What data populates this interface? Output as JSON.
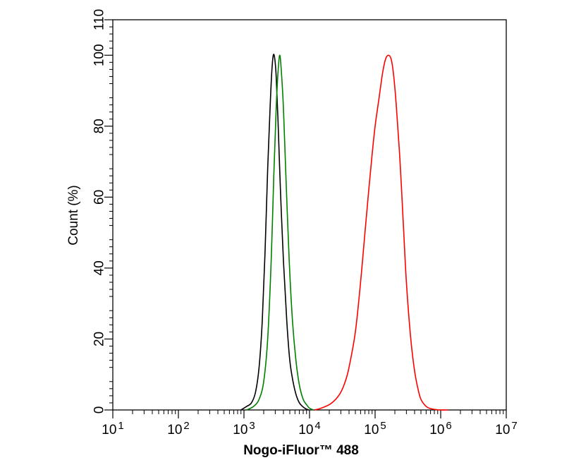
{
  "chart_data": {
    "type": "line",
    "title": "",
    "xlabel": "Nogo-iFluor™ 488",
    "ylabel": "Count  (%)",
    "x_scale": "log",
    "xlim": [
      10,
      10000000
    ],
    "ylim": [
      0,
      110
    ],
    "x_ticks": [
      {
        "base": "10",
        "exp": "1"
      },
      {
        "base": "10",
        "exp": "2"
      },
      {
        "base": "10",
        "exp": "3"
      },
      {
        "base": "10",
        "exp": "4"
      },
      {
        "base": "10",
        "exp": "5"
      },
      {
        "base": "10",
        "exp": "6"
      },
      {
        "base": "10",
        "exp": "7"
      }
    ],
    "y_ticks": [
      "0",
      "20",
      "40",
      "60",
      "80",
      "100",
      "110"
    ],
    "y_tick_values": [
      0,
      20,
      40,
      60,
      80,
      100,
      110
    ],
    "legend": "none",
    "grid": false,
    "series": [
      {
        "color": "#000000",
        "x": [
          900,
          1100,
          1300,
          1500,
          1700,
          1900,
          2100,
          2300,
          2500,
          2650,
          2800,
          2950,
          3100,
          3300,
          3600,
          4000,
          4500,
          5000,
          5600,
          6300,
          7000,
          7800,
          8800,
          9800
        ],
        "y": [
          0,
          1,
          2,
          5,
          12,
          25,
          45,
          68,
          85,
          95,
          100,
          99,
          94,
          82,
          62,
          42,
          25,
          14,
          8,
          4,
          2,
          1,
          0.3,
          0
        ]
      },
      {
        "color": "#008000",
        "x": [
          1100,
          1400,
          1700,
          2000,
          2300,
          2600,
          2850,
          3100,
          3300,
          3500,
          3700,
          4000,
          4400,
          4900,
          5500,
          6200,
          7000,
          8000,
          9000,
          10000,
          11500
        ],
        "y": [
          0,
          1,
          3,
          8,
          20,
          42,
          66,
          85,
          95,
          100,
          96,
          85,
          64,
          42,
          25,
          14,
          7,
          3,
          1.5,
          0.5,
          0
        ]
      },
      {
        "color": "#ff0000",
        "x": [
          12000,
          15000,
          20000,
          25000,
          30000,
          35000,
          40000,
          50000,
          60000,
          70000,
          80000,
          90000,
          100000,
          115000,
          130000,
          145000,
          160000,
          175000,
          190000,
          210000,
          240000,
          270000,
          300000,
          350000,
          400000,
          450000,
          500000,
          600000,
          700000,
          850000,
          1000000,
          1300000
        ],
        "y": [
          0,
          0.5,
          1.5,
          3,
          5,
          8,
          12,
          22,
          36,
          50,
          62,
          72,
          80,
          88,
          95,
          99,
          100,
          99,
          95,
          86,
          70,
          52,
          36,
          20,
          11,
          6,
          3,
          1,
          0.4,
          0.1,
          0,
          0
        ]
      }
    ]
  }
}
